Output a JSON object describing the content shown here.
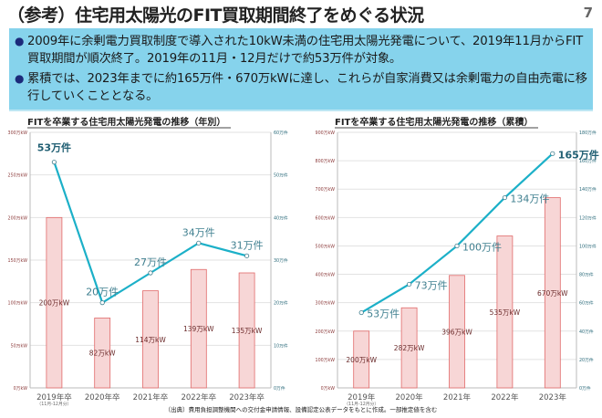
{
  "header": {
    "title": "（参考）住宅用太陽光のFIT買取期間終了をめぐる状況",
    "page_number": "7"
  },
  "summary": {
    "bullets": [
      "2009年に余剰電力買取制度で導入された10kW未満の住宅用太陽光発電について、2019年11月からFIT買取期間が順次終了。2019年の11月・12月だけで約53万件が対象。",
      "累積では、2023年までに約165万件・670万kWに達し、これらが自家消費又は余剰電力の自由売電に移行していくこととなる。"
    ]
  },
  "source": "（出典）費用負担調整機関への交付金申請情報、設備認定公表データをもとに作成。一部推定値を含む",
  "colors": {
    "bar_fill": "#f7d6d6",
    "bar_stroke": "#e06a6a",
    "line": "#1cb0c8",
    "line_label": "#3f7f8f",
    "box": "#86d3ec"
  },
  "chart_data": [
    {
      "type": "bar+line",
      "title": "FITを卒業する住宅用太陽光発電の推移（年別）",
      "categories": [
        "2019年卒",
        "2020年卒",
        "2021年卒",
        "2022年卒",
        "2023年卒"
      ],
      "category_note": "（11月-12月分）",
      "bar_series": {
        "unit": "万kW",
        "values": [
          200,
          82,
          114,
          139,
          135
        ],
        "labels": [
          "200万kW",
          "82万kW",
          "114万kW",
          "139万kW",
          "135万kW"
        ]
      },
      "line_series": {
        "unit": "万件",
        "values": [
          53,
          20,
          27,
          34,
          31
        ],
        "labels": [
          "53万件",
          "20万件",
          "27万件",
          "34万件",
          "31万件"
        ]
      },
      "y_left": {
        "range": [
          0,
          300
        ],
        "ticks": [
          "0万kW",
          "50万kW",
          "100万kW",
          "150万kW",
          "200万kW",
          "250万kW",
          "300万kW"
        ]
      },
      "y_right": {
        "range": [
          0,
          60
        ],
        "ticks": [
          "0万件",
          "10万件",
          "20万件",
          "30万件",
          "40万件",
          "50万件",
          "60万件"
        ]
      },
      "grid": true
    },
    {
      "type": "bar+line",
      "title": "FITを卒業する住宅用太陽光発電の推移（累積）",
      "categories": [
        "2019年",
        "2020年",
        "2021年",
        "2022年",
        "2023年"
      ],
      "category_note": "（11月-12月分）",
      "bar_series": {
        "unit": "万kW",
        "values": [
          200,
          282,
          396,
          535,
          670
        ],
        "labels": [
          "200万kW",
          "282万kW",
          "396万kW",
          "535万kW",
          "670万kW"
        ]
      },
      "line_series": {
        "unit": "万件",
        "values": [
          53,
          73,
          100,
          134,
          165
        ],
        "labels": [
          "53万件",
          "73万件",
          "100万件",
          "134万件",
          "165万件"
        ]
      },
      "y_left": {
        "range": [
          0,
          900
        ],
        "ticks": [
          "0万kW",
          "100万kW",
          "200万kW",
          "300万kW",
          "400万kW",
          "500万kW",
          "600万kW",
          "700万kW",
          "800万kW",
          "900万kW"
        ]
      },
      "y_right": {
        "range": [
          0,
          180
        ],
        "ticks": [
          "0万件",
          "20万件",
          "40万件",
          "60万件",
          "80万件",
          "100万件",
          "120万件",
          "140万件",
          "160万件",
          "180万件"
        ]
      },
      "grid": true
    }
  ]
}
